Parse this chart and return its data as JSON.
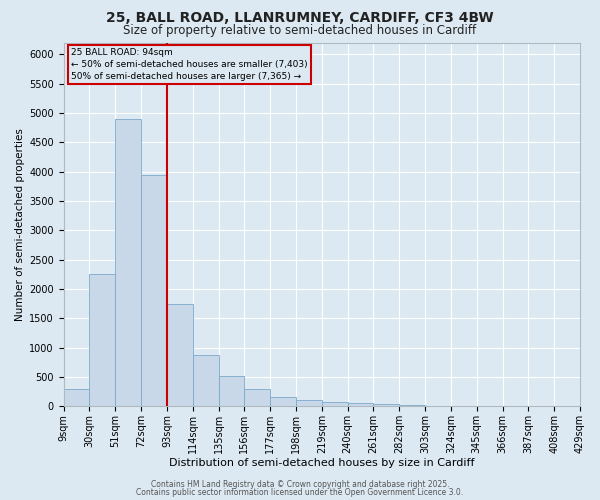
{
  "title_line1": "25, BALL ROAD, LLANRUMNEY, CARDIFF, CF3 4BW",
  "title_line2": "Size of property relative to semi-detached houses in Cardiff",
  "xlabel": "Distribution of semi-detached houses by size in Cardiff",
  "ylabel": "Number of semi-detached properties",
  "annotation_title": "25 BALL ROAD: 94sqm",
  "annotation_line2": "← 50% of semi-detached houses are smaller (7,403)",
  "annotation_line3": "50% of semi-detached houses are larger (7,365) →",
  "footer_line1": "Contains HM Land Registry data © Crown copyright and database right 2025.",
  "footer_line2": "Contains public sector information licensed under the Open Government Licence 3.0.",
  "median_line_x": 93,
  "bin_edges": [
    9,
    30,
    51,
    72,
    93,
    114,
    135,
    156,
    177,
    198,
    219,
    240,
    261,
    282,
    303,
    324,
    345,
    366,
    387,
    408,
    429
  ],
  "bin_labels": [
    "9sqm",
    "30sqm",
    "51sqm",
    "72sqm",
    "93sqm",
    "114sqm",
    "135sqm",
    "156sqm",
    "177sqm",
    "198sqm",
    "219sqm",
    "240sqm",
    "261sqm",
    "282sqm",
    "303sqm",
    "324sqm",
    "345sqm",
    "366sqm",
    "387sqm",
    "408sqm",
    "429sqm"
  ],
  "bar_heights": [
    290,
    2250,
    4900,
    3950,
    1750,
    880,
    520,
    290,
    160,
    100,
    80,
    60,
    40,
    20,
    10,
    5,
    5,
    5,
    5,
    5
  ],
  "bar_color": "#c8d8e8",
  "bar_edge_color": "#7aaacb",
  "median_line_color": "#cc0000",
  "annotation_box_color": "#cc0000",
  "background_color": "#dce9f2",
  "ylim": [
    0,
    6200
  ],
  "yticks": [
    0,
    500,
    1000,
    1500,
    2000,
    2500,
    3000,
    3500,
    4000,
    4500,
    5000,
    5500,
    6000
  ],
  "title_fontsize": 10,
  "subtitle_fontsize": 8.5,
  "xlabel_fontsize": 8,
  "ylabel_fontsize": 7.5,
  "tick_fontsize": 7,
  "annotation_fontsize": 6.5,
  "footer_fontsize": 5.5
}
